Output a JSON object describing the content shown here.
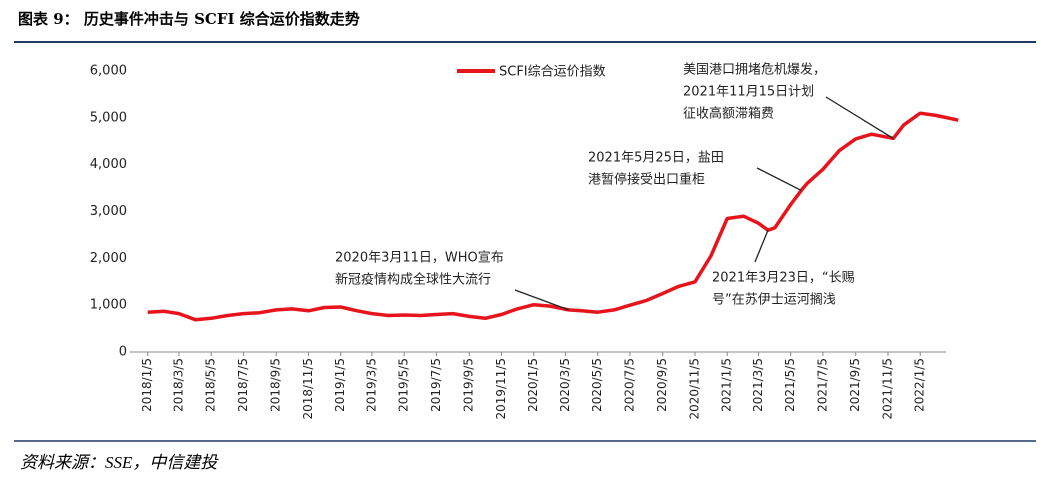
{
  "chart_data": {
    "type": "line",
    "title": "图表 9：  历史事件冲击与 SCFI 综合运价指数走势",
    "source": "资料来源：SSE，中信建投",
    "x": [
      "2018/1/5",
      "2018/2/5",
      "2018/3/5",
      "2018/4/5",
      "2018/5/5",
      "2018/6/5",
      "2018/7/5",
      "2018/8/5",
      "2018/9/5",
      "2018/10/5",
      "2018/11/5",
      "2018/12/5",
      "2019/1/5",
      "2019/2/5",
      "2019/3/5",
      "2019/4/5",
      "2019/5/5",
      "2019/6/5",
      "2019/7/5",
      "2019/8/5",
      "2019/9/5",
      "2019/10/5",
      "2019/11/5",
      "2019/12/5",
      "2020/1/5",
      "2020/2/5",
      "2020/3/11",
      "2020/4/5",
      "2020/5/5",
      "2020/6/5",
      "2020/7/5",
      "2020/8/5",
      "2020/9/5",
      "2020/10/5",
      "2020/11/5",
      "2020/12/5",
      "2021/1/5",
      "2021/2/5",
      "2021/3/5",
      "2021/3/23",
      "2021/4/5",
      "2021/5/5",
      "2021/5/25",
      "2021/6/5",
      "2021/7/5",
      "2021/8/5",
      "2021/9/5",
      "2021/10/5",
      "2021/11/15",
      "2021/12/5",
      "2022/1/5",
      "2022/2/5",
      "2022/3/18"
    ],
    "series": [
      {
        "name": "SCFI综合运价指数",
        "color": "#e8141b",
        "values": [
          850,
          870,
          820,
          690,
          720,
          780,
          820,
          840,
          900,
          920,
          880,
          950,
          960,
          880,
          820,
          780,
          790,
          780,
          800,
          820,
          760,
          720,
          800,
          920,
          1010,
          980,
          900,
          880,
          850,
          900,
          1000,
          1100,
          1250,
          1400,
          1500,
          2050,
          2850,
          2900,
          2750,
          2600,
          2650,
          3150,
          3450,
          3600,
          3900,
          4300,
          4550,
          4650,
          4560,
          4850,
          5100,
          5050,
          4950
        ]
      }
    ],
    "xlim": [
      "2017/12/10",
      "2022/3/25"
    ],
    "xticks": [
      "2018/1/5",
      "2018/3/5",
      "2018/5/5",
      "2018/7/5",
      "2018/9/5",
      "2018/11/5",
      "2019/1/5",
      "2019/3/5",
      "2019/5/5",
      "2019/7/5",
      "2019/9/5",
      "2019/11/5",
      "2020/1/5",
      "2020/3/5",
      "2020/5/5",
      "2020/7/5",
      "2020/9/5",
      "2020/11/5",
      "2021/1/5",
      "2021/3/5",
      "2021/5/5",
      "2021/7/5",
      "2021/9/5",
      "2021/11/5",
      "2022/1/5"
    ],
    "ylim": [
      0,
      6000
    ],
    "yticks": [
      0,
      {
        "value": 1000,
        "label": "1,000"
      },
      {
        "value": 2000,
        "label": "2,000"
      },
      {
        "value": 3000,
        "label": "3,000"
      },
      {
        "value": 4000,
        "label": "4,000"
      },
      {
        "value": 5000,
        "label": "5,000"
      },
      {
        "value": 6000,
        "label": "6,000"
      }
    ],
    "grid": false,
    "legend": "top",
    "annotations": [
      {
        "x": "2020/3/11",
        "text": [
          "2020年3月11日，WHO宣布",
          "新冠疫情构成全球性大流行"
        ]
      },
      {
        "x": "2021/3/23",
        "text": [
          "2021年3月23日，“长赐",
          "号”在苏伊士运河搁浅"
        ]
      },
      {
        "x": "2021/5/25",
        "text": [
          "2021年5月25日，盐田",
          "港暂停接受出口重柜"
        ]
      },
      {
        "x": "2021/11/15",
        "text": [
          "美国港口拥堵危机爆发，",
          "2021年11月15日计划",
          "征收高额滞箱费"
        ]
      }
    ]
  }
}
